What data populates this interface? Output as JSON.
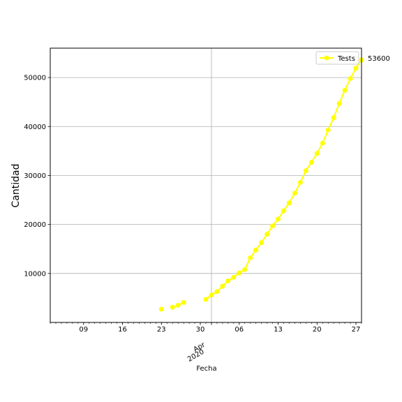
{
  "chart_data": {
    "type": "line",
    "xlabel": "Fecha",
    "ylabel": "Cantidad",
    "xlim": [
      "2020-03-03",
      "2020-04-28"
    ],
    "ylim": [
      0,
      56000
    ],
    "grid": true,
    "legend_position": "top-right",
    "x_ticks": [
      {
        "date": "2020-03-09",
        "label": "09"
      },
      {
        "date": "2020-03-16",
        "label": "16"
      },
      {
        "date": "2020-03-23",
        "label": "23"
      },
      {
        "date": "2020-03-30",
        "label": "30"
      },
      {
        "date": "2020-04-06",
        "label": "06"
      },
      {
        "date": "2020-04-13",
        "label": "13"
      },
      {
        "date": "2020-04-20",
        "label": "20"
      },
      {
        "date": "2020-04-27",
        "label": "27"
      }
    ],
    "x_month_label": "Apr",
    "x_year_label": "2020",
    "month_gridline_date": "2020-04-01",
    "y_ticks": [
      {
        "value": 10000,
        "label": "10000"
      },
      {
        "value": 20000,
        "label": "20000"
      },
      {
        "value": 30000,
        "label": "30000"
      },
      {
        "value": 40000,
        "label": "40000"
      },
      {
        "value": 50000,
        "label": "50000"
      }
    ],
    "series": [
      {
        "name": "Tests",
        "color": "#ffff00",
        "segments": [
          [
            {
              "x": "2020-03-23",
              "y": 2700
            }
          ],
          [
            {
              "x": "2020-03-25",
              "y": 3100
            },
            {
              "x": "2020-03-26",
              "y": 3500
            },
            {
              "x": "2020-03-27",
              "y": 4100
            }
          ],
          [
            {
              "x": "2020-03-31",
              "y": 4700
            },
            {
              "x": "2020-04-01",
              "y": 5600
            },
            {
              "x": "2020-04-02",
              "y": 6300
            },
            {
              "x": "2020-04-03",
              "y": 7400
            },
            {
              "x": "2020-04-04",
              "y": 8500
            },
            {
              "x": "2020-04-05",
              "y": 9200
            },
            {
              "x": "2020-04-06",
              "y": 10100
            },
            {
              "x": "2020-04-07",
              "y": 10800
            },
            {
              "x": "2020-04-08",
              "y": 13200
            },
            {
              "x": "2020-04-09",
              "y": 14800
            },
            {
              "x": "2020-04-10",
              "y": 16300
            },
            {
              "x": "2020-04-11",
              "y": 18000
            },
            {
              "x": "2020-04-12",
              "y": 19700
            },
            {
              "x": "2020-04-13",
              "y": 21100
            },
            {
              "x": "2020-04-14",
              "y": 22800
            },
            {
              "x": "2020-04-15",
              "y": 24400
            },
            {
              "x": "2020-04-16",
              "y": 26400
            },
            {
              "x": "2020-04-17",
              "y": 28600
            },
            {
              "x": "2020-04-18",
              "y": 31000
            },
            {
              "x": "2020-04-19",
              "y": 32700
            },
            {
              "x": "2020-04-20",
              "y": 34500
            },
            {
              "x": "2020-04-21",
              "y": 36600
            },
            {
              "x": "2020-04-22",
              "y": 39300
            },
            {
              "x": "2020-04-23",
              "y": 41800
            },
            {
              "x": "2020-04-24",
              "y": 44700
            },
            {
              "x": "2020-04-25",
              "y": 47400
            },
            {
              "x": "2020-04-26",
              "y": 49800
            },
            {
              "x": "2020-04-27",
              "y": 51900
            },
            {
              "x": "2020-04-28",
              "y": 53600
            }
          ]
        ]
      }
    ],
    "annotation": {
      "text": "53600",
      "x": "2020-04-28",
      "y": 53600
    }
  }
}
